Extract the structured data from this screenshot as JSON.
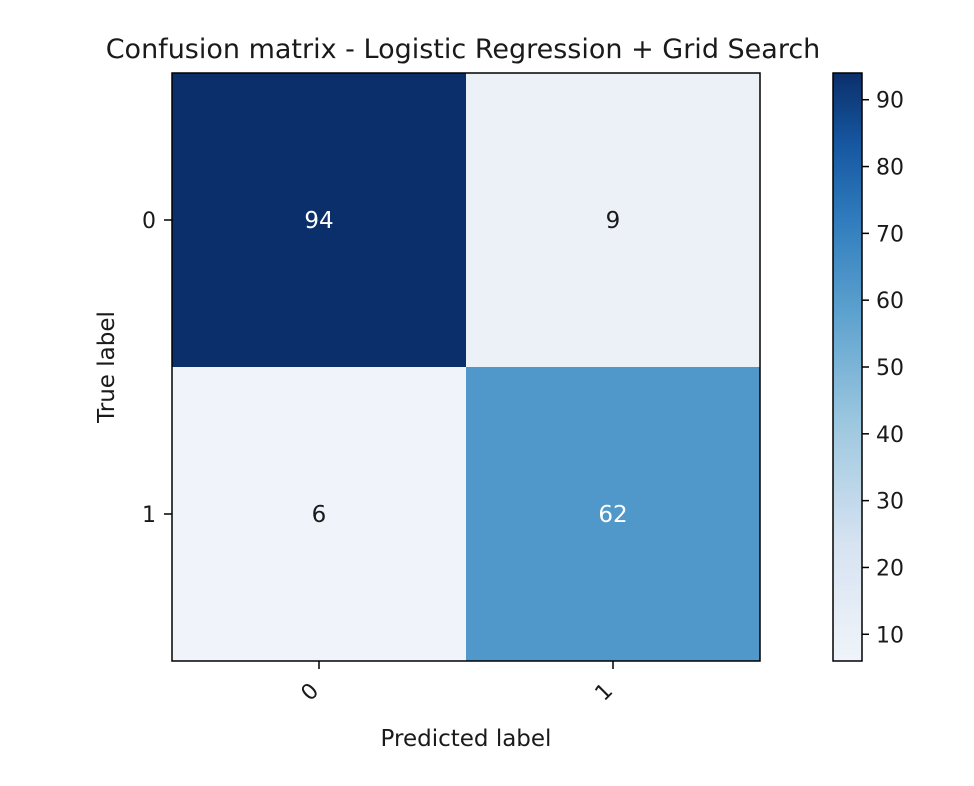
{
  "chart_data": {
    "type": "heatmap",
    "title": "Confusion matrix - Logistic Regression + Grid Search",
    "xlabel": "Predicted label",
    "ylabel": "True label",
    "x_categories": [
      "0",
      "1"
    ],
    "y_categories": [
      "0",
      "1"
    ],
    "values": [
      [
        94,
        9
      ],
      [
        6,
        62
      ]
    ],
    "colormap": "Blues",
    "color_low": "#f0f4fa",
    "color_high": "#0b2f6b",
    "colorbar": {
      "range": [
        6,
        94
      ],
      "ticks": [
        "10",
        "20",
        "30",
        "40",
        "50",
        "60",
        "70",
        "80",
        "90"
      ]
    }
  }
}
